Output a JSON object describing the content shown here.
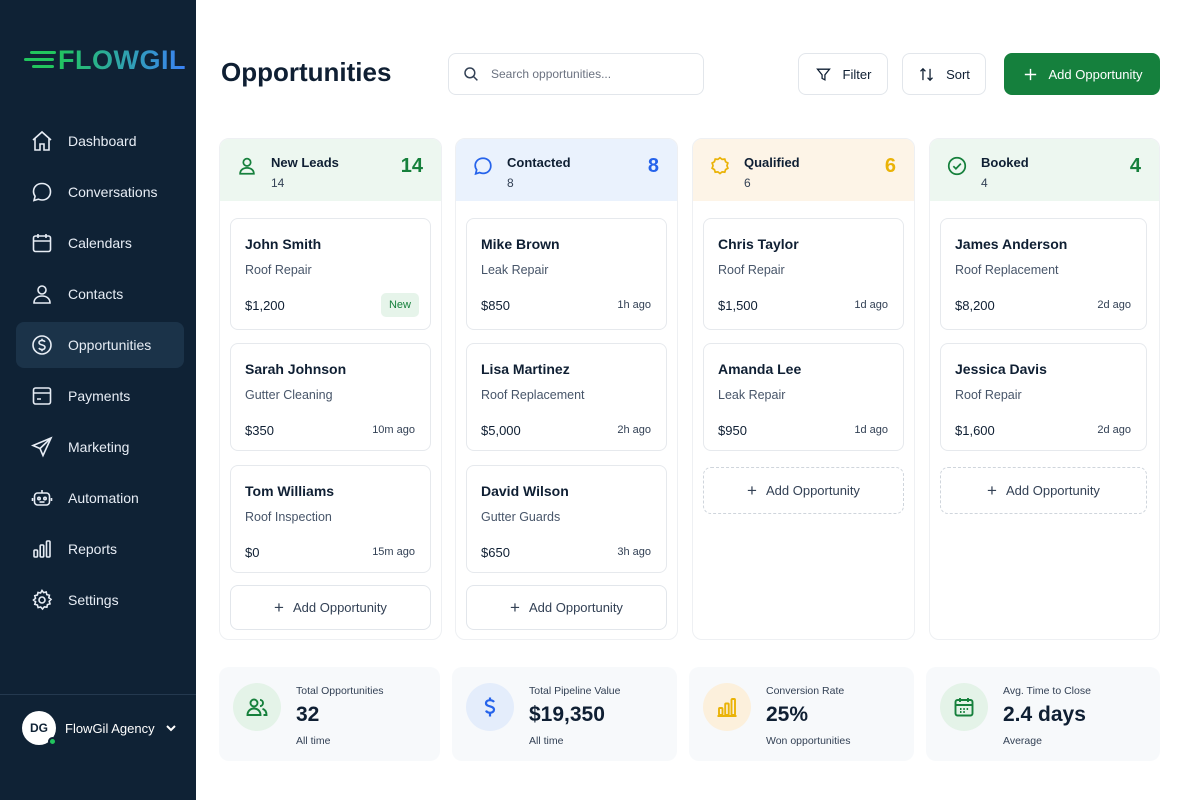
{
  "brand": {
    "name": "FLOWGIL",
    "accent": "#22c55e"
  },
  "sidebar": {
    "items": [
      {
        "label": "Dashboard",
        "icon": "home-icon"
      },
      {
        "label": "Conversations",
        "icon": "chat-bubble-icon"
      },
      {
        "label": "Calendars",
        "icon": "calendar-icon"
      },
      {
        "label": "Contacts",
        "icon": "user-icon"
      },
      {
        "label": "Opportunities",
        "icon": "dollar-circle-icon",
        "active": true
      },
      {
        "label": "Payments",
        "icon": "credit-card-icon"
      },
      {
        "label": "Marketing",
        "icon": "send-icon"
      },
      {
        "label": "Automation",
        "icon": "robot-icon"
      },
      {
        "label": "Reports",
        "icon": "bar-chart-icon"
      },
      {
        "label": "Settings",
        "icon": "gear-icon"
      }
    ],
    "account": {
      "initials": "DG",
      "name": "FlowGil Agency"
    }
  },
  "header": {
    "title": "Opportunities",
    "search_placeholder": "Search opportunities...",
    "filter_label": "Filter",
    "sort_label": "Sort",
    "add_label": "Add Opportunity"
  },
  "columns": [
    {
      "title": "New Leads",
      "sub": "14",
      "count": "14",
      "color": "#16803c",
      "head_bg": "#edf7f0",
      "icon": "user-icon",
      "cards": [
        {
          "name": "John Smith",
          "service": "Roof Repair",
          "amount": "$1,200",
          "badge": "New"
        },
        {
          "name": "Sarah Johnson",
          "service": "Gutter Cleaning",
          "amount": "$350",
          "time": "10m ago"
        },
        {
          "name": "Tom Williams",
          "service": "Roof Inspection",
          "amount": "$0",
          "time": "15m ago"
        }
      ],
      "add_label": "Add Opportunity"
    },
    {
      "title": "Contacted",
      "sub": "8",
      "count": "8",
      "color": "#2563eb",
      "head_bg": "#eaf2fd",
      "icon": "chat-bubble-icon",
      "cards": [
        {
          "name": "Mike Brown",
          "service": "Leak Repair",
          "amount": "$850",
          "time": "1h ago"
        },
        {
          "name": "Lisa Martinez",
          "service": "Roof Replacement",
          "amount": "$5,000",
          "time": "2h ago"
        },
        {
          "name": "David Wilson",
          "service": "Gutter Guards",
          "amount": "$650",
          "time": "3h ago"
        }
      ],
      "add_label": "Add Opportunity"
    },
    {
      "title": "Qualified",
      "sub": "6",
      "count": "6",
      "color": "#eab308",
      "head_bg": "#fdf4e7",
      "icon": "badge-icon",
      "cards": [
        {
          "name": "Chris Taylor",
          "service": "Roof Repair",
          "amount": "$1,500",
          "time": "1d ago"
        },
        {
          "name": "Amanda Lee",
          "service": "Leak Repair",
          "amount": "$950",
          "time": "1d ago"
        }
      ],
      "add_label": "Add Opportunity"
    },
    {
      "title": "Booked",
      "sub": "4",
      "count": "4",
      "color": "#16803c",
      "head_bg": "#edf7f0",
      "icon": "check-circle-icon",
      "cards": [
        {
          "name": "James Anderson",
          "service": "Roof Replacement",
          "amount": "$8,200",
          "time": "2d ago"
        },
        {
          "name": "Jessica Davis",
          "service": "Roof Repair",
          "amount": "$1,600",
          "time": "2d ago"
        }
      ],
      "add_label": "Add Opportunity"
    }
  ],
  "stats": [
    {
      "label": "Total Opportunities",
      "value": "32",
      "sub": "All time",
      "icon": "users-icon",
      "color": "#16803c",
      "icon_bg": "#e4f3e8"
    },
    {
      "label": "Total Pipeline Value",
      "value": "$19,350",
      "sub": "All time",
      "icon": "dollar-icon",
      "color": "#2563eb",
      "icon_bg": "#e4edfb"
    },
    {
      "label": "Conversion Rate",
      "value": "25%",
      "sub": "Won opportunities",
      "icon": "bar-chart-icon",
      "color": "#eab308",
      "icon_bg": "#fcf0dc"
    },
    {
      "label": "Avg. Time to Close",
      "value": "2.4 days",
      "sub": "Average",
      "icon": "calendar-icon",
      "color": "#16803c",
      "icon_bg": "#e4f3e8"
    }
  ]
}
